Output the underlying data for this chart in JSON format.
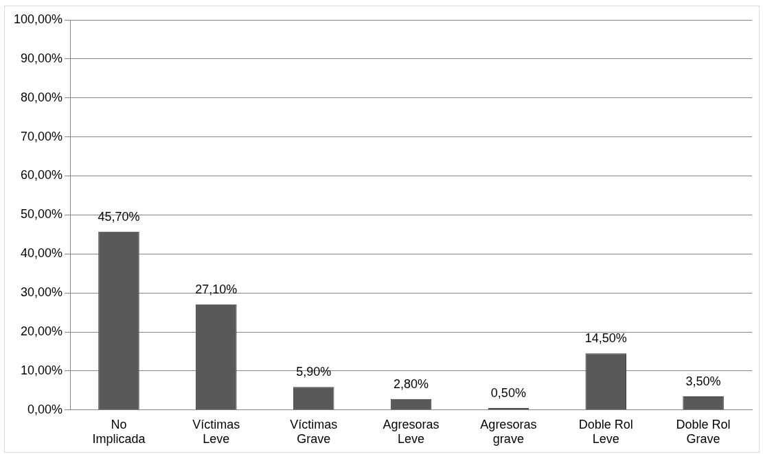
{
  "chart_data": {
    "type": "bar",
    "categories": [
      "No Implicada",
      "Víctimas Leve",
      "Víctimas Grave",
      "Agresoras Leve",
      "Agresoras grave",
      "Doble Rol Leve",
      "Doble Rol Grave"
    ],
    "values": [
      45.7,
      27.1,
      5.9,
      2.8,
      0.5,
      14.5,
      3.5
    ],
    "value_labels": [
      "45,70%",
      "27,10%",
      "5,90%",
      "2,80%",
      "0,50%",
      "14,50%",
      "3,50%"
    ],
    "color": "#595959",
    "ylim": [
      0,
      100
    ],
    "yticks": [
      {
        "value": 0,
        "label": "0,00%"
      },
      {
        "value": 10,
        "label": "10,00%"
      },
      {
        "value": 20,
        "label": "20,00%"
      },
      {
        "value": 30,
        "label": "30,00%"
      },
      {
        "value": 40,
        "label": "40,00%"
      },
      {
        "value": 50,
        "label": "50,00%"
      },
      {
        "value": 60,
        "label": "60,00%"
      },
      {
        "value": 70,
        "label": "70,00%"
      },
      {
        "value": 80,
        "label": "80,00%"
      },
      {
        "value": 90,
        "label": "90,00%"
      },
      {
        "value": 100,
        "label": "100,00%"
      }
    ],
    "grid": "y",
    "legend": false
  }
}
